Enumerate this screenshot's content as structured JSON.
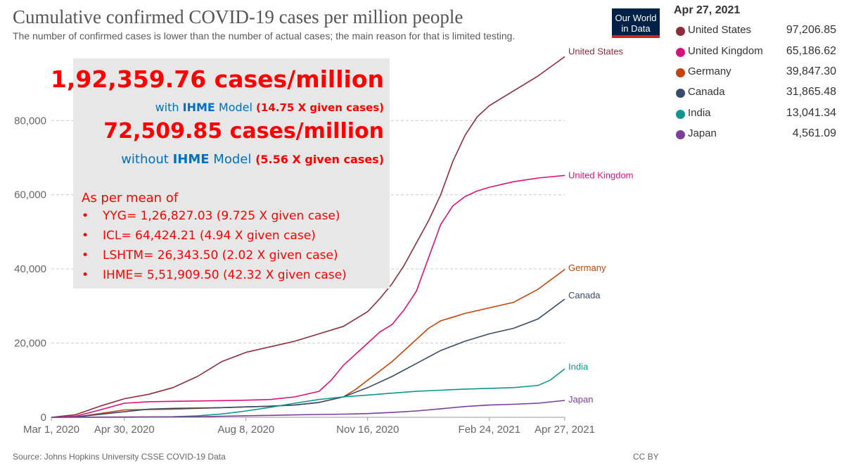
{
  "header": {
    "title": "Cumulative confirmed COVID-19 cases per million people",
    "subtitle": "The number of confirmed cases is lower than the number of actual cases; the main reason for that is limited testing.",
    "logo_line1": "Our World",
    "logo_line2": "in Data"
  },
  "legend": {
    "date": "Apr 27, 2021",
    "items": [
      {
        "name": "United States",
        "value": "97,206.85",
        "color": "#8b2e3b"
      },
      {
        "name": "United Kingdom",
        "value": "65,186.62",
        "color": "#d9127b"
      },
      {
        "name": "Germany",
        "value": "39,847.30",
        "color": "#c2440a"
      },
      {
        "name": "Canada",
        "value": "31,865.48",
        "color": "#3a4a6a"
      },
      {
        "name": "India",
        "value": "13,041.34",
        "color": "#0f9691"
      },
      {
        "name": "Japan",
        "value": "4,561.09",
        "color": "#7d3e9a"
      }
    ]
  },
  "annotation": {
    "line1": "1,92,359.76 cases/million",
    "line2_prefix": "with ",
    "line2_ihme": "IHME",
    "line2_model": " Model ",
    "line2_mult": "(14.75 X given cases)",
    "line3": "72,509.85 cases/million",
    "line4_prefix": "without ",
    "line4_ihme": "IHME",
    "line4_model": " Model ",
    "line4_mult": "(5.56 X given cases)",
    "as_per_mean": "As per mean of",
    "bullet": "•",
    "items": [
      "YYG= 1,26,827.03 (9.725  X given case)",
      "ICL= 64,424.21 (4.94 X given case)",
      "LSHTM= 26,343.50 (2.02 X given case)",
      "IHME= 5,51,909.50 (42.32 X given case)"
    ]
  },
  "footer": {
    "source": "Source: Johns Hopkins University CSSE COVID-19 Data",
    "license": "CC BY"
  },
  "chart_data": {
    "type": "line",
    "title": "Cumulative confirmed COVID-19 cases per million people",
    "xlabel": "",
    "ylabel": "",
    "x_unit": "days since Mar 1, 2020",
    "xlim": [
      0,
      422
    ],
    "ylim": [
      0,
      97500
    ],
    "y_ticks": [
      0,
      20000,
      40000,
      60000,
      80000
    ],
    "y_tick_labels": [
      "0",
      "20,000",
      "40,000",
      "60,000",
      "80,000"
    ],
    "x_ticks": [
      0,
      60,
      160,
      260,
      360,
      422
    ],
    "x_tick_labels": [
      "Mar 1, 2020",
      "Apr 30, 2020",
      "Aug 8, 2020",
      "Nov 16, 2020",
      "Feb 24, 2021",
      "Apr 27, 2021"
    ],
    "grid": "horizontal dashed",
    "series": [
      {
        "name": "United States",
        "color": "#8b2e3b",
        "label": "United States",
        "x": [
          0,
          20,
          40,
          60,
          80,
          100,
          120,
          140,
          160,
          180,
          200,
          220,
          240,
          260,
          270,
          280,
          290,
          300,
          310,
          320,
          330,
          340,
          350,
          360,
          380,
          400,
          422
        ],
        "y": [
          0,
          700,
          3000,
          5000,
          6200,
          8000,
          11000,
          15000,
          17500,
          19000,
          20500,
          22500,
          24500,
          28500,
          32000,
          36000,
          41000,
          47000,
          53000,
          60000,
          69000,
          76000,
          81000,
          84000,
          88000,
          92000,
          97207
        ]
      },
      {
        "name": "United Kingdom",
        "color": "#d9127b",
        "label": "United Kingdom",
        "x": [
          0,
          20,
          40,
          60,
          80,
          100,
          120,
          140,
          160,
          180,
          200,
          220,
          230,
          240,
          250,
          260,
          270,
          280,
          290,
          300,
          310,
          320,
          330,
          340,
          350,
          360,
          380,
          400,
          422
        ],
        "y": [
          0,
          300,
          2000,
          3800,
          4200,
          4300,
          4400,
          4500,
          4600,
          4800,
          5500,
          7000,
          10000,
          14000,
          17000,
          20000,
          23000,
          25000,
          29000,
          34000,
          43000,
          52000,
          57000,
          59500,
          61000,
          62000,
          63500,
          64500,
          65187
        ]
      },
      {
        "name": "Germany",
        "color": "#c2440a",
        "label": "Germany",
        "x": [
          0,
          20,
          40,
          60,
          80,
          100,
          120,
          140,
          160,
          180,
          200,
          220,
          240,
          250,
          260,
          270,
          280,
          290,
          300,
          310,
          320,
          330,
          340,
          360,
          380,
          400,
          422
        ],
        "y": [
          0,
          100,
          1000,
          2000,
          2100,
          2200,
          2400,
          2600,
          2800,
          3000,
          3300,
          4000,
          5500,
          7500,
          10000,
          12500,
          15000,
          18000,
          21000,
          24000,
          26000,
          27000,
          28000,
          29500,
          31000,
          34500,
          39847
        ]
      },
      {
        "name": "Canada",
        "color": "#3a4a6a",
        "label": "Canada",
        "x": [
          0,
          20,
          40,
          60,
          80,
          100,
          120,
          140,
          160,
          180,
          200,
          220,
          240,
          260,
          280,
          300,
          320,
          340,
          360,
          380,
          400,
          422
        ],
        "y": [
          0,
          100,
          800,
          1500,
          2200,
          2400,
          2500,
          2600,
          2800,
          3000,
          3300,
          4000,
          5500,
          8000,
          11000,
          14500,
          18000,
          20500,
          22500,
          24000,
          26500,
          31865
        ]
      },
      {
        "name": "India",
        "color": "#0f9691",
        "label": "India",
        "x": [
          0,
          40,
          60,
          80,
          100,
          120,
          140,
          160,
          180,
          200,
          220,
          240,
          260,
          280,
          300,
          320,
          340,
          360,
          380,
          400,
          410,
          422
        ],
        "y": [
          0,
          10,
          20,
          50,
          150,
          400,
          900,
          1700,
          2700,
          3800,
          4800,
          5500,
          6000,
          6500,
          7000,
          7300,
          7600,
          7800,
          8000,
          8600,
          10000,
          13041
        ]
      },
      {
        "name": "Japan",
        "color": "#7d3e9a",
        "label": "Japan",
        "x": [
          0,
          40,
          60,
          80,
          100,
          120,
          140,
          160,
          180,
          200,
          220,
          240,
          260,
          280,
          300,
          320,
          340,
          360,
          380,
          400,
          422
        ],
        "y": [
          0,
          60,
          100,
          110,
          120,
          150,
          280,
          420,
          520,
          650,
          750,
          850,
          1000,
          1300,
          1700,
          2300,
          2900,
          3300,
          3500,
          3800,
          4561
        ]
      }
    ]
  }
}
